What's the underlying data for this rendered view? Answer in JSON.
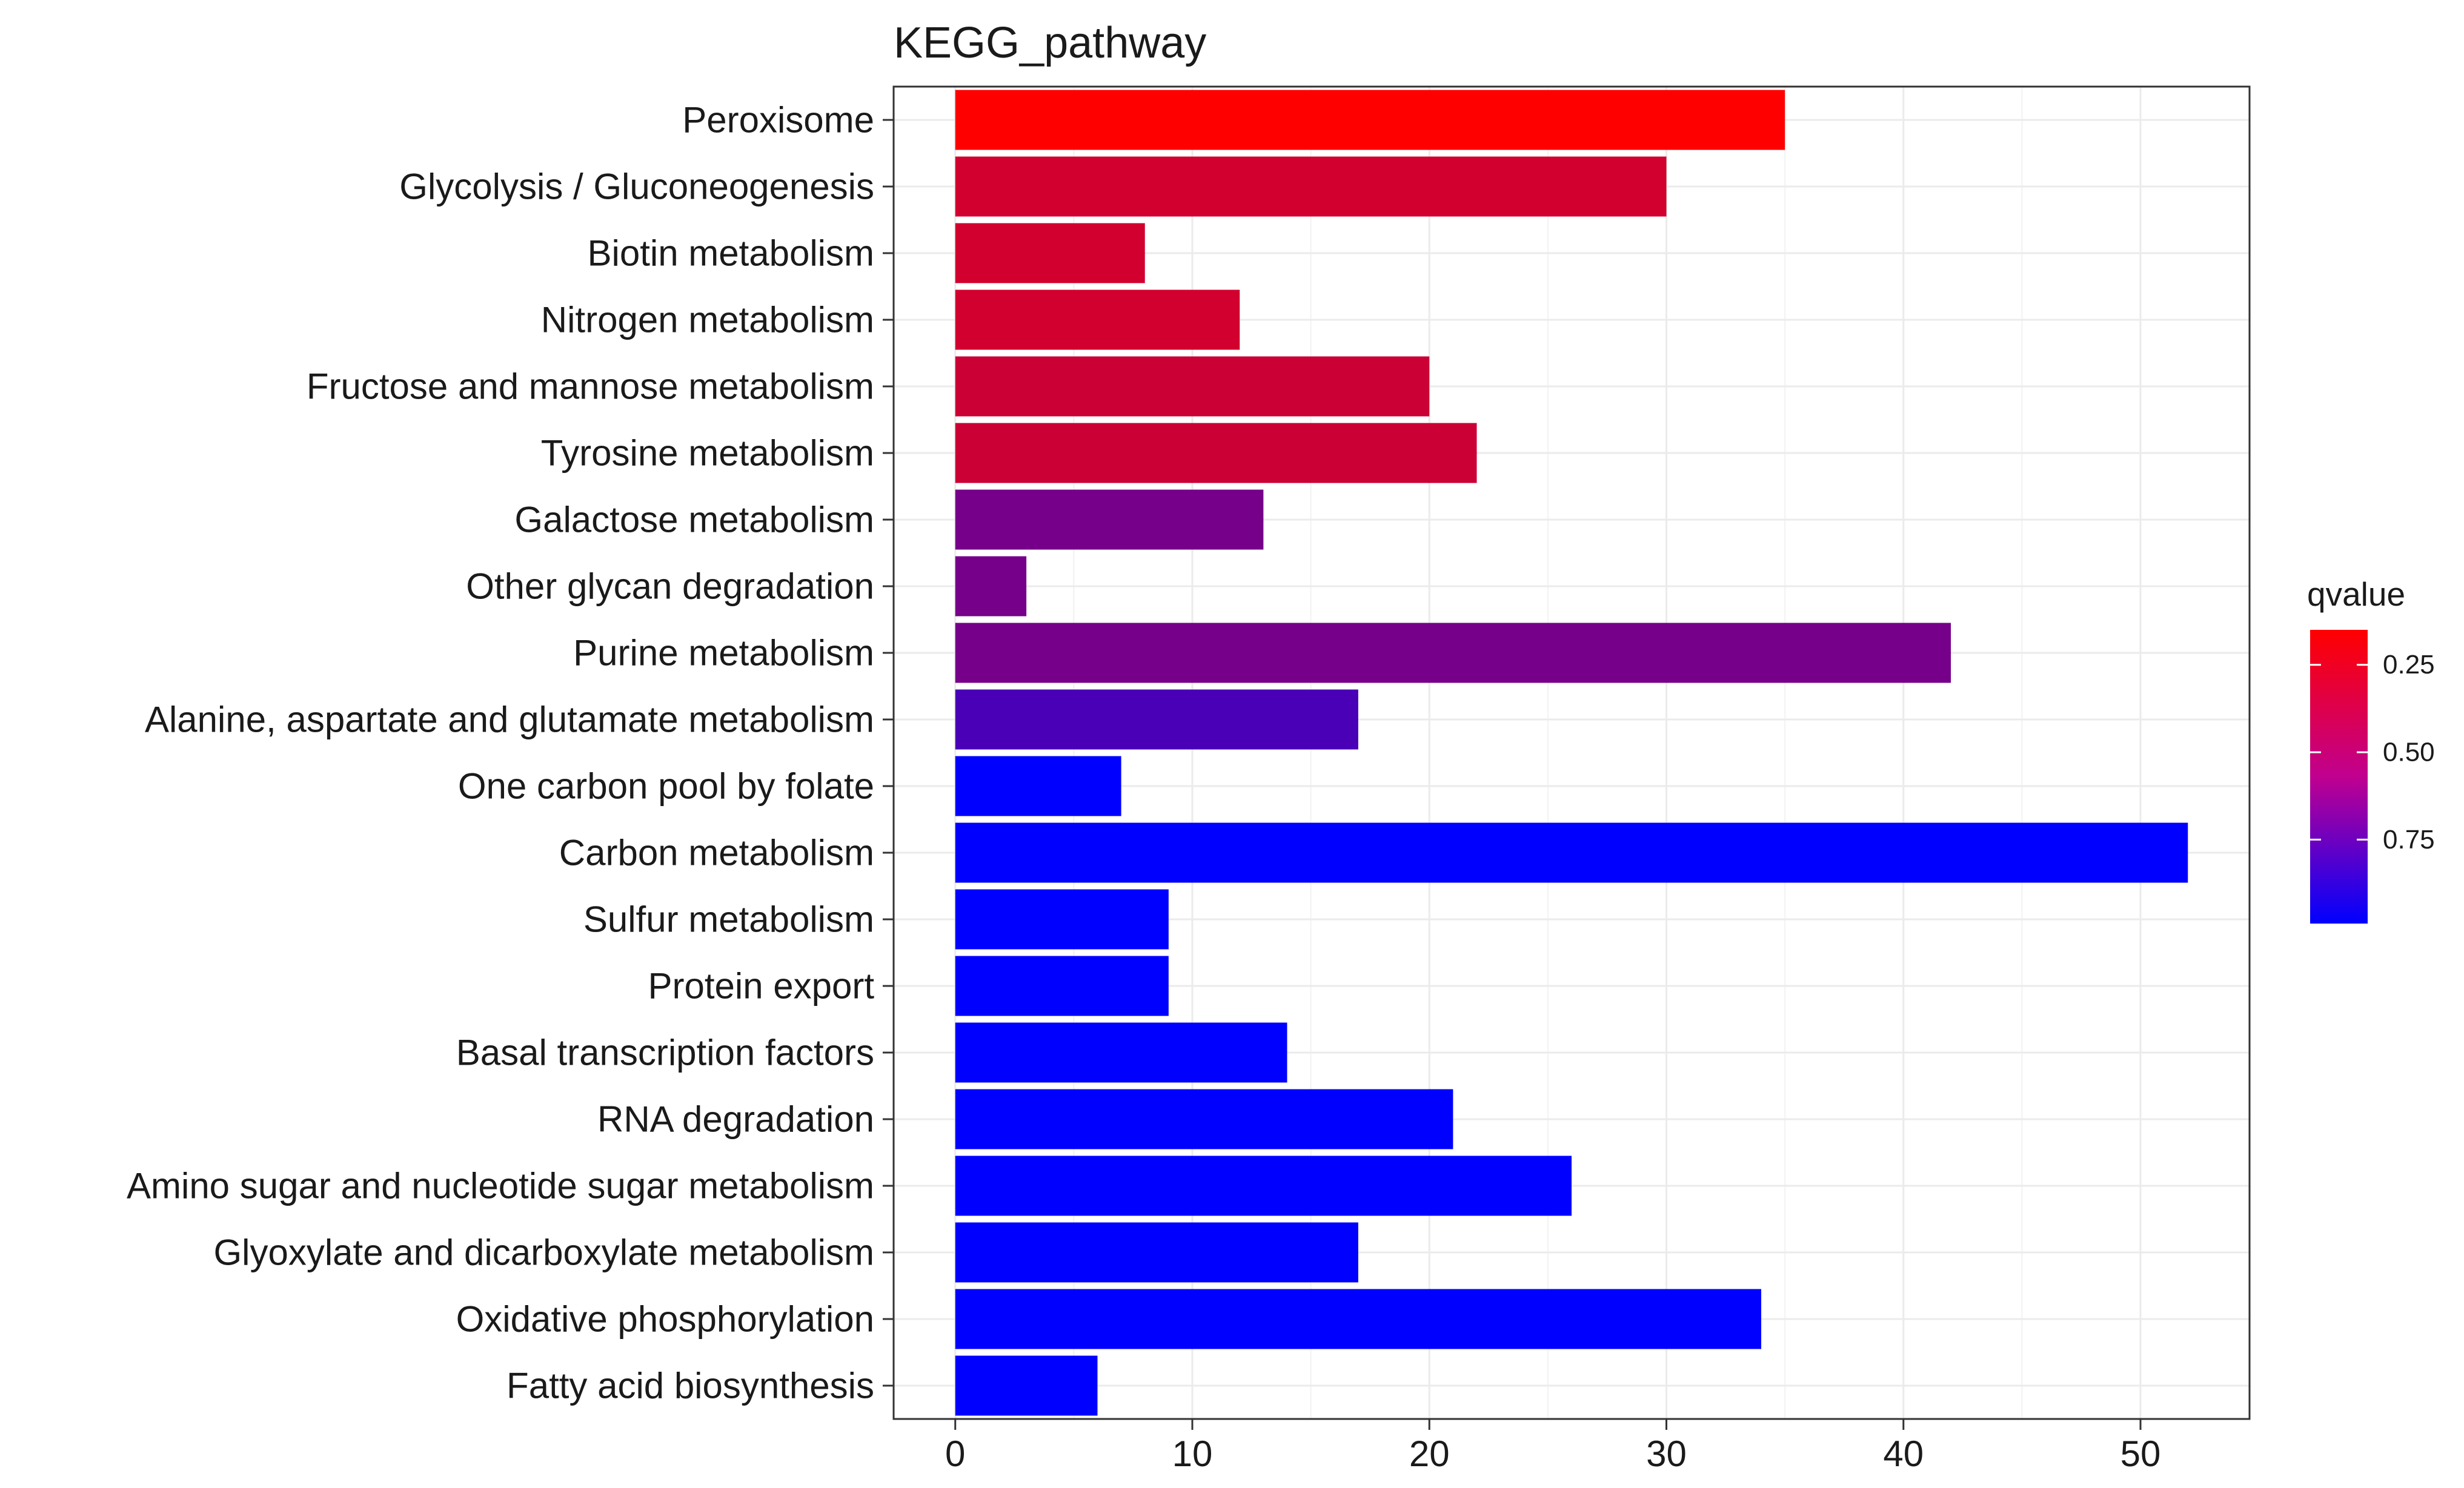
{
  "chart_data": {
    "type": "bar",
    "orientation": "horizontal",
    "title": "KEGG_pathway",
    "xlabel": "",
    "ylabel": "",
    "xlim": [
      -2.6,
      54.6
    ],
    "xticks": [
      0,
      10,
      20,
      30,
      40,
      50
    ],
    "grid": true,
    "categories": [
      "Peroxisome",
      "Glycolysis / Gluconeogenesis",
      "Biotin metabolism",
      "Nitrogen metabolism",
      "Fructose and mannose metabolism",
      "Tyrosine metabolism",
      "Galactose metabolism",
      "Other glycan degradation",
      "Purine metabolism",
      "Alanine, aspartate and glutamate metabolism",
      "One carbon pool by folate",
      "Carbon metabolism",
      "Sulfur metabolism",
      "Protein export",
      "Basal transcription factors",
      "RNA degradation",
      "Amino sugar and nucleotide sugar metabolism",
      "Glyoxylate and dicarboxylate metabolism",
      "Oxidative phosphorylation",
      "Fatty acid biosynthesis"
    ],
    "values": [
      35,
      30,
      8,
      12,
      20,
      22,
      13,
      3,
      42,
      17,
      7,
      52,
      9,
      9,
      14,
      21,
      26,
      17,
      34,
      6
    ],
    "qvalues": [
      0.15,
      0.3,
      0.3,
      0.3,
      0.32,
      0.32,
      0.6,
      0.6,
      0.6,
      0.75,
      0.99,
      0.99,
      0.99,
      0.99,
      0.99,
      0.99,
      0.99,
      0.99,
      0.99,
      0.99
    ],
    "legend": {
      "title": "qvalue",
      "position": "right",
      "range": [
        0.15,
        0.99
      ],
      "ticks": [
        0.25,
        0.5,
        0.75
      ],
      "tick_labels": [
        "0.25",
        "0.50",
        "0.75"
      ],
      "low_color": "#ff0000",
      "high_color": "#0000ff"
    }
  }
}
